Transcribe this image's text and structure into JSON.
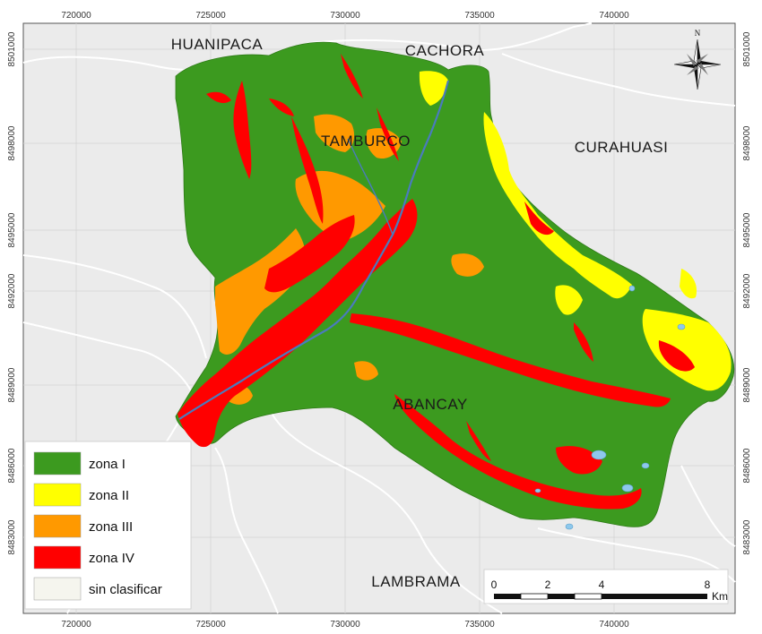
{
  "colors": {
    "frame_bg": "#ebebeb",
    "map_bg": "#ebebeb",
    "boundary": "#ffffff",
    "zona_I": "#3c9a1f",
    "zona_II": "#ffff00",
    "zona_III": "#ff9900",
    "zona_IV": "#ff0000",
    "sin_clasificar": "#f5f5ee",
    "river": "#4a7bbd",
    "lake": "#8ec8ec"
  },
  "axes": {
    "x_ticks_top": [
      "720000",
      "725000",
      "730000",
      "735000",
      "740000"
    ],
    "x_ticks_bottom": [
      "720000",
      "725000",
      "730000",
      "735000",
      "740000"
    ],
    "y_ticks_left": [
      "8501000",
      "8498000",
      "8495000",
      "8492000",
      "8489000",
      "8486000",
      "8483000"
    ],
    "y_ticks_right": [
      "8501000",
      "8498000",
      "8495000",
      "8492000",
      "8489000",
      "8486000",
      "8483000"
    ]
  },
  "places": {
    "huanipaca": "HUANIPACA",
    "cachora": "CACHORA",
    "curahuasi": "CURAHUASI",
    "tamburco": "TAMBURCO",
    "abancay": "ABANCAY",
    "lambrama": "LAMBRAMA"
  },
  "legend": [
    {
      "label": "zona I",
      "color": "#3c9a1f"
    },
    {
      "label": "zona II",
      "color": "#ffff00"
    },
    {
      "label": "zona III",
      "color": "#ff9900"
    },
    {
      "label": "zona IV",
      "color": "#ff0000"
    },
    {
      "label": "sin clasificar",
      "color": "#f5f5ee"
    }
  ],
  "scale_bar": {
    "labels": [
      "0",
      "2",
      "4",
      "8"
    ],
    "unit": "Km"
  },
  "north_arrow": {
    "label": "N",
    "icon": "compass-rose-icon"
  }
}
